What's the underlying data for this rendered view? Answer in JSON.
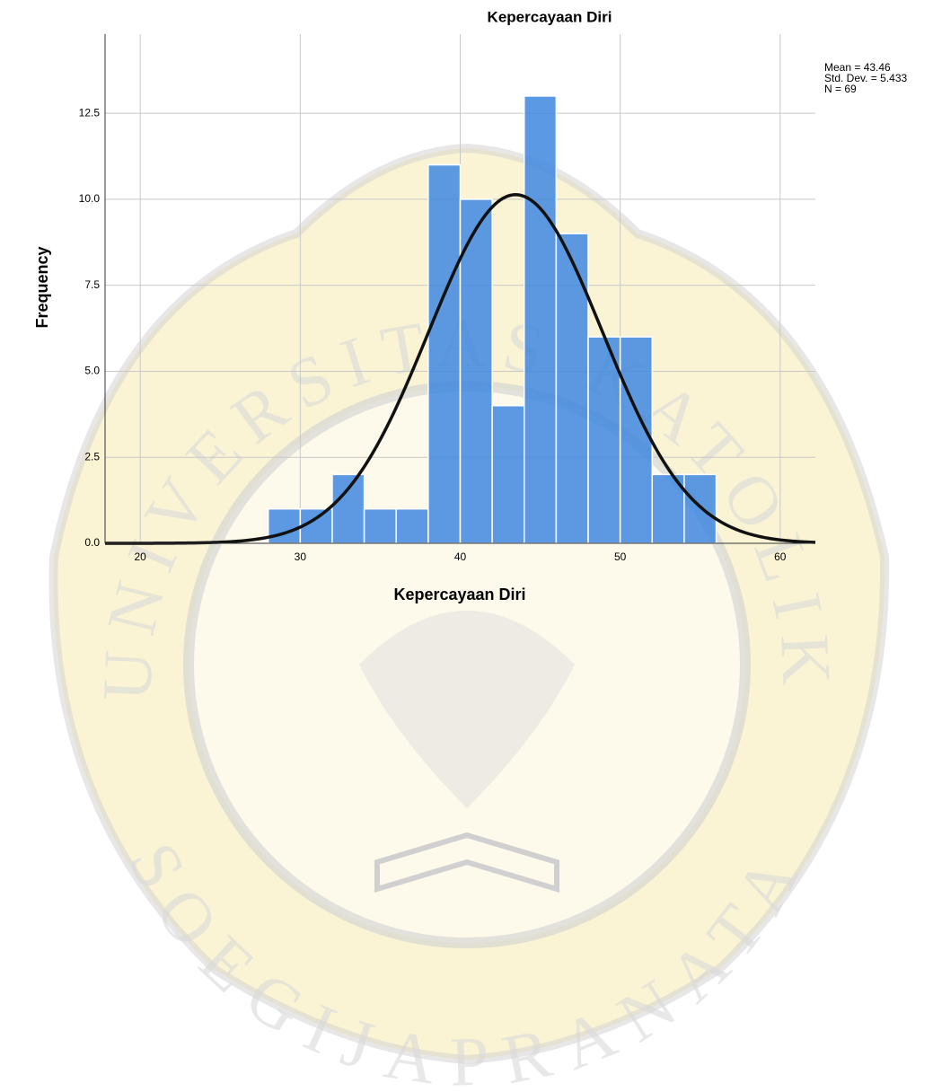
{
  "chart_data": {
    "type": "histogram",
    "title": "Kepercayaan Diri",
    "x_label": "Kepercayaan Diri",
    "y_label": "Frequency",
    "bins": [
      28,
      30,
      32,
      34,
      36,
      38,
      40,
      42,
      44,
      46,
      48,
      50,
      52,
      54,
      56
    ],
    "values": [
      1,
      1,
      2,
      1,
      1,
      11,
      10,
      4,
      13,
      9,
      6,
      6,
      2,
      2
    ],
    "color": "#3f87e0",
    "curve_color": "#111111",
    "xlim": [
      17.8,
      62.2
    ],
    "ylim": [
      0,
      14.8
    ],
    "xticks": [
      20,
      30,
      40,
      50,
      60
    ],
    "yticks": [
      {
        "value": 0,
        "label": "0.0"
      },
      2.5,
      {
        "value": 5,
        "label": "5.0"
      },
      7.5,
      {
        "value": 10,
        "label": "10.0"
      },
      12.5
    ],
    "grid": true,
    "stats": [
      {
        "value": 43.46,
        "label": "Mean = 43.46"
      },
      {
        "value": 5.433,
        "label": "Std. Dev. = 5.433"
      },
      {
        "value": 69,
        "label": "N = 69"
      }
    ],
    "watermark": {
      "top": "UNIVERSITAS KATOLIK",
      "bottom": "SOEGIJAPRANATA"
    }
  }
}
